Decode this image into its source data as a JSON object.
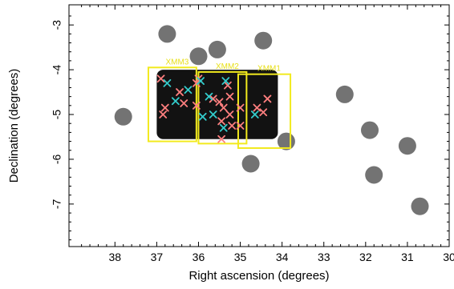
{
  "chart_data": {
    "type": "scatter",
    "xlabel": "Right ascension (degrees)",
    "ylabel": "Declination (degrees)",
    "xlim": [
      39.1,
      30.0
    ],
    "ylim": [
      -7.95,
      -2.55
    ],
    "x_reversed": true,
    "x_ticks": [
      38,
      37,
      36,
      35,
      34,
      33,
      32,
      31,
      30
    ],
    "y_ticks": [
      -3,
      -4,
      -5,
      -6,
      -7
    ],
    "grid": false,
    "legend": "none",
    "fields": [
      {
        "name": "XMM3",
        "ra_min": 36.05,
        "ra_max": 37.2,
        "dec_min": -5.6,
        "dec_max": -3.95
      },
      {
        "name": "XMM2",
        "ra_min": 34.85,
        "ra_max": 36.0,
        "dec_min": -5.65,
        "dec_max": -4.05
      },
      {
        "name": "XMM1",
        "ra_min": 33.8,
        "ra_max": 35.05,
        "dec_min": -5.75,
        "dec_max": -4.1
      }
    ],
    "series": [
      {
        "color": "#ff7f7f",
        "marker": "x",
        "points": [
          [
            36.9,
            -4.2
          ],
          [
            36.45,
            -4.5
          ],
          [
            36.8,
            -4.85
          ],
          [
            36.85,
            -5.0
          ],
          [
            36.35,
            -4.75
          ],
          [
            36.05,
            -4.3
          ],
          [
            36.05,
            -4.8
          ],
          [
            35.65,
            -4.65
          ],
          [
            35.5,
            -4.72
          ],
          [
            35.4,
            -4.85
          ],
          [
            35.3,
            -4.35
          ],
          [
            35.25,
            -4.6
          ],
          [
            35.25,
            -5.0
          ],
          [
            35.45,
            -5.15
          ],
          [
            35.2,
            -5.25
          ],
          [
            35.0,
            -4.85
          ],
          [
            35.0,
            -5.25
          ],
          [
            35.45,
            -5.55
          ],
          [
            34.6,
            -4.85
          ],
          [
            34.35,
            -4.65
          ],
          [
            34.45,
            -4.95
          ],
          [
            36.0,
            -4.2
          ]
        ]
      },
      {
        "color": "#33cccc",
        "marker": "x",
        "points": [
          [
            36.75,
            -4.3
          ],
          [
            36.25,
            -4.45
          ],
          [
            36.55,
            -4.7
          ],
          [
            35.9,
            -5.05
          ],
          [
            35.75,
            -4.6
          ],
          [
            35.65,
            -5.0
          ],
          [
            35.35,
            -4.25
          ],
          [
            35.4,
            -5.3
          ],
          [
            35.95,
            -4.25
          ],
          [
            34.65,
            -5.0
          ]
        ]
      }
    ]
  }
}
